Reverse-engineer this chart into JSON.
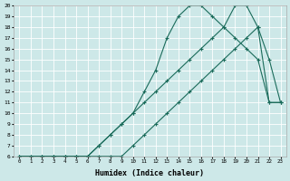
{
  "xlabel": "Humidex (Indice chaleur)",
  "background_color": "#cde8e8",
  "grid_color": "#ffffff",
  "line_color": "#1a6b5a",
  "xlim": [
    -0.5,
    23.5
  ],
  "ylim": [
    6,
    20
  ],
  "xticks": [
    0,
    1,
    2,
    3,
    4,
    5,
    6,
    7,
    8,
    9,
    10,
    11,
    12,
    13,
    14,
    15,
    16,
    17,
    18,
    19,
    20,
    21,
    22,
    23
  ],
  "yticks": [
    6,
    7,
    8,
    9,
    10,
    11,
    12,
    13,
    14,
    15,
    16,
    17,
    18,
    19,
    20
  ],
  "line1_x": [
    0,
    1,
    2,
    3,
    4,
    5,
    6,
    7,
    8,
    9,
    10,
    11,
    12,
    13,
    14,
    15,
    16,
    17,
    18,
    19,
    20,
    21,
    22,
    23
  ],
  "line1_y": [
    6,
    6,
    6,
    6,
    6,
    6,
    6,
    6,
    6,
    6,
    7,
    8,
    9,
    10,
    11,
    12,
    13,
    14,
    15,
    16,
    17,
    18,
    11,
    11
  ],
  "line2_x": [
    0,
    1,
    2,
    3,
    4,
    5,
    6,
    7,
    8,
    9,
    10,
    11,
    12,
    13,
    14,
    15,
    16,
    17,
    18,
    19,
    20,
    21,
    22,
    23
  ],
  "line2_y": [
    6,
    6,
    6,
    6,
    6,
    6,
    6,
    7,
    8,
    9,
    10,
    11,
    12,
    13,
    14,
    15,
    16,
    17,
    18,
    17,
    16,
    15,
    11,
    11
  ],
  "line3_x": [
    0,
    2,
    3,
    4,
    5,
    6,
    7,
    8,
    9,
    10,
    11,
    12,
    13,
    14,
    15,
    16,
    17,
    18,
    19,
    20,
    21,
    22,
    23
  ],
  "line3_y": [
    6,
    6,
    6,
    6,
    6,
    6,
    7,
    8,
    9,
    10,
    12,
    14,
    17,
    19,
    20,
    20,
    19,
    18,
    20,
    20,
    18,
    15,
    11
  ],
  "marker": "+",
  "markersize": 3.5,
  "linewidth": 0.8
}
